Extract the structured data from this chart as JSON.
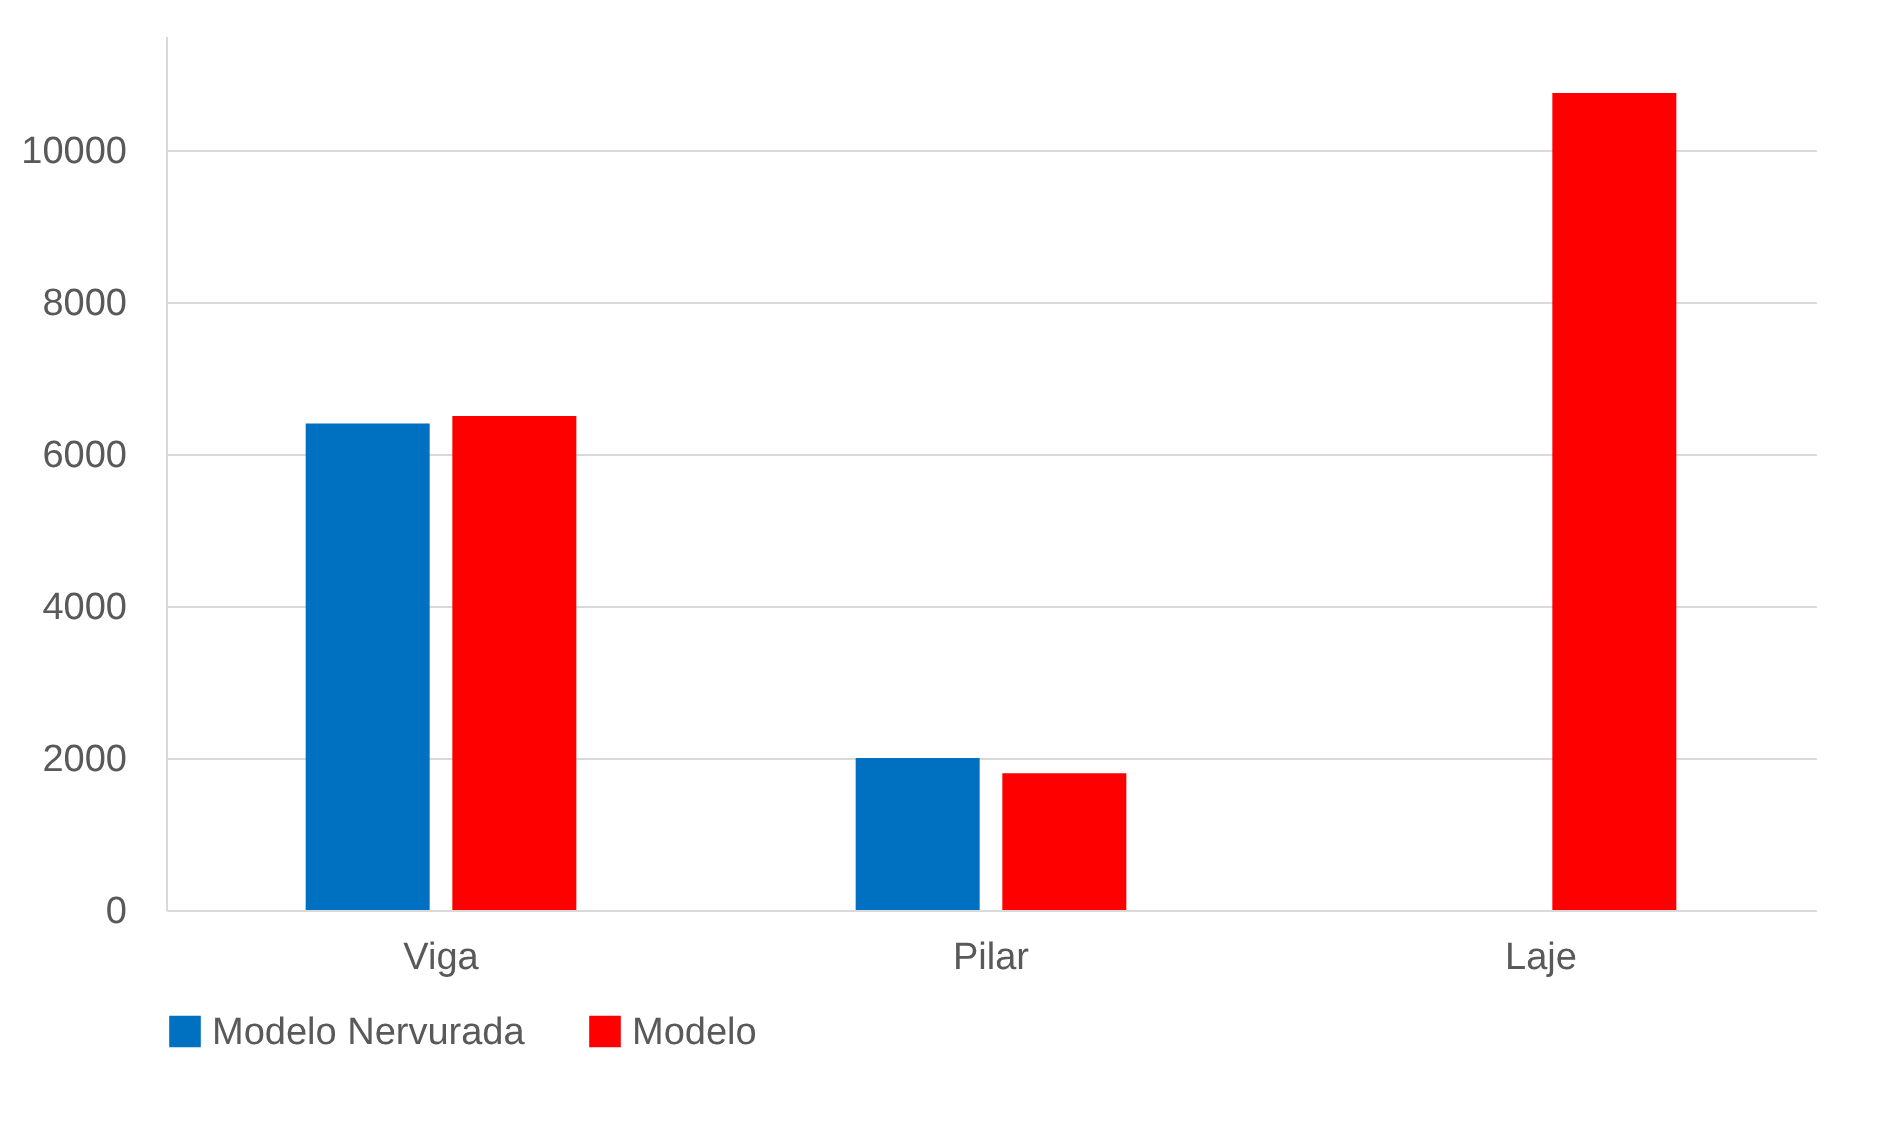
{
  "chart_data": {
    "type": "bar",
    "categories": [
      "Viga",
      "Pilar",
      "Laje"
    ],
    "series": [
      {
        "name": "Modelo Nervurada",
        "color": "#0070c0",
        "values": [
          6400,
          2000,
          null
        ]
      },
      {
        "name": "Modelo",
        "color": "#ff0000",
        "values": [
          6500,
          1800,
          10750
        ]
      }
    ],
    "ylim": [
      0,
      11500
    ],
    "yticks": [
      0,
      2000,
      4000,
      6000,
      8000,
      10000
    ],
    "grid": "y",
    "legend": "bottom"
  }
}
